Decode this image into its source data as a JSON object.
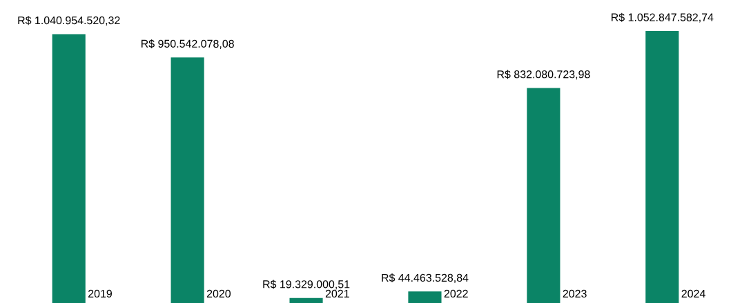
{
  "chart_data": {
    "type": "bar",
    "categories": [
      "2019",
      "2020",
      "2021",
      "2022",
      "2023",
      "2024"
    ],
    "values": [
      1040954520.32,
      950542078.08,
      19329000.51,
      44463528.84,
      832080723.98,
      1052847582.74
    ],
    "value_labels": [
      "R$ 1.040.954.520,32",
      "R$ 950.542.078,08",
      "R$ 19.329.000,51",
      "R$ 44.463.528,84",
      "R$ 832.080.723,98",
      "R$ 1.052.847.582,74"
    ],
    "color": "#0b8466"
  }
}
